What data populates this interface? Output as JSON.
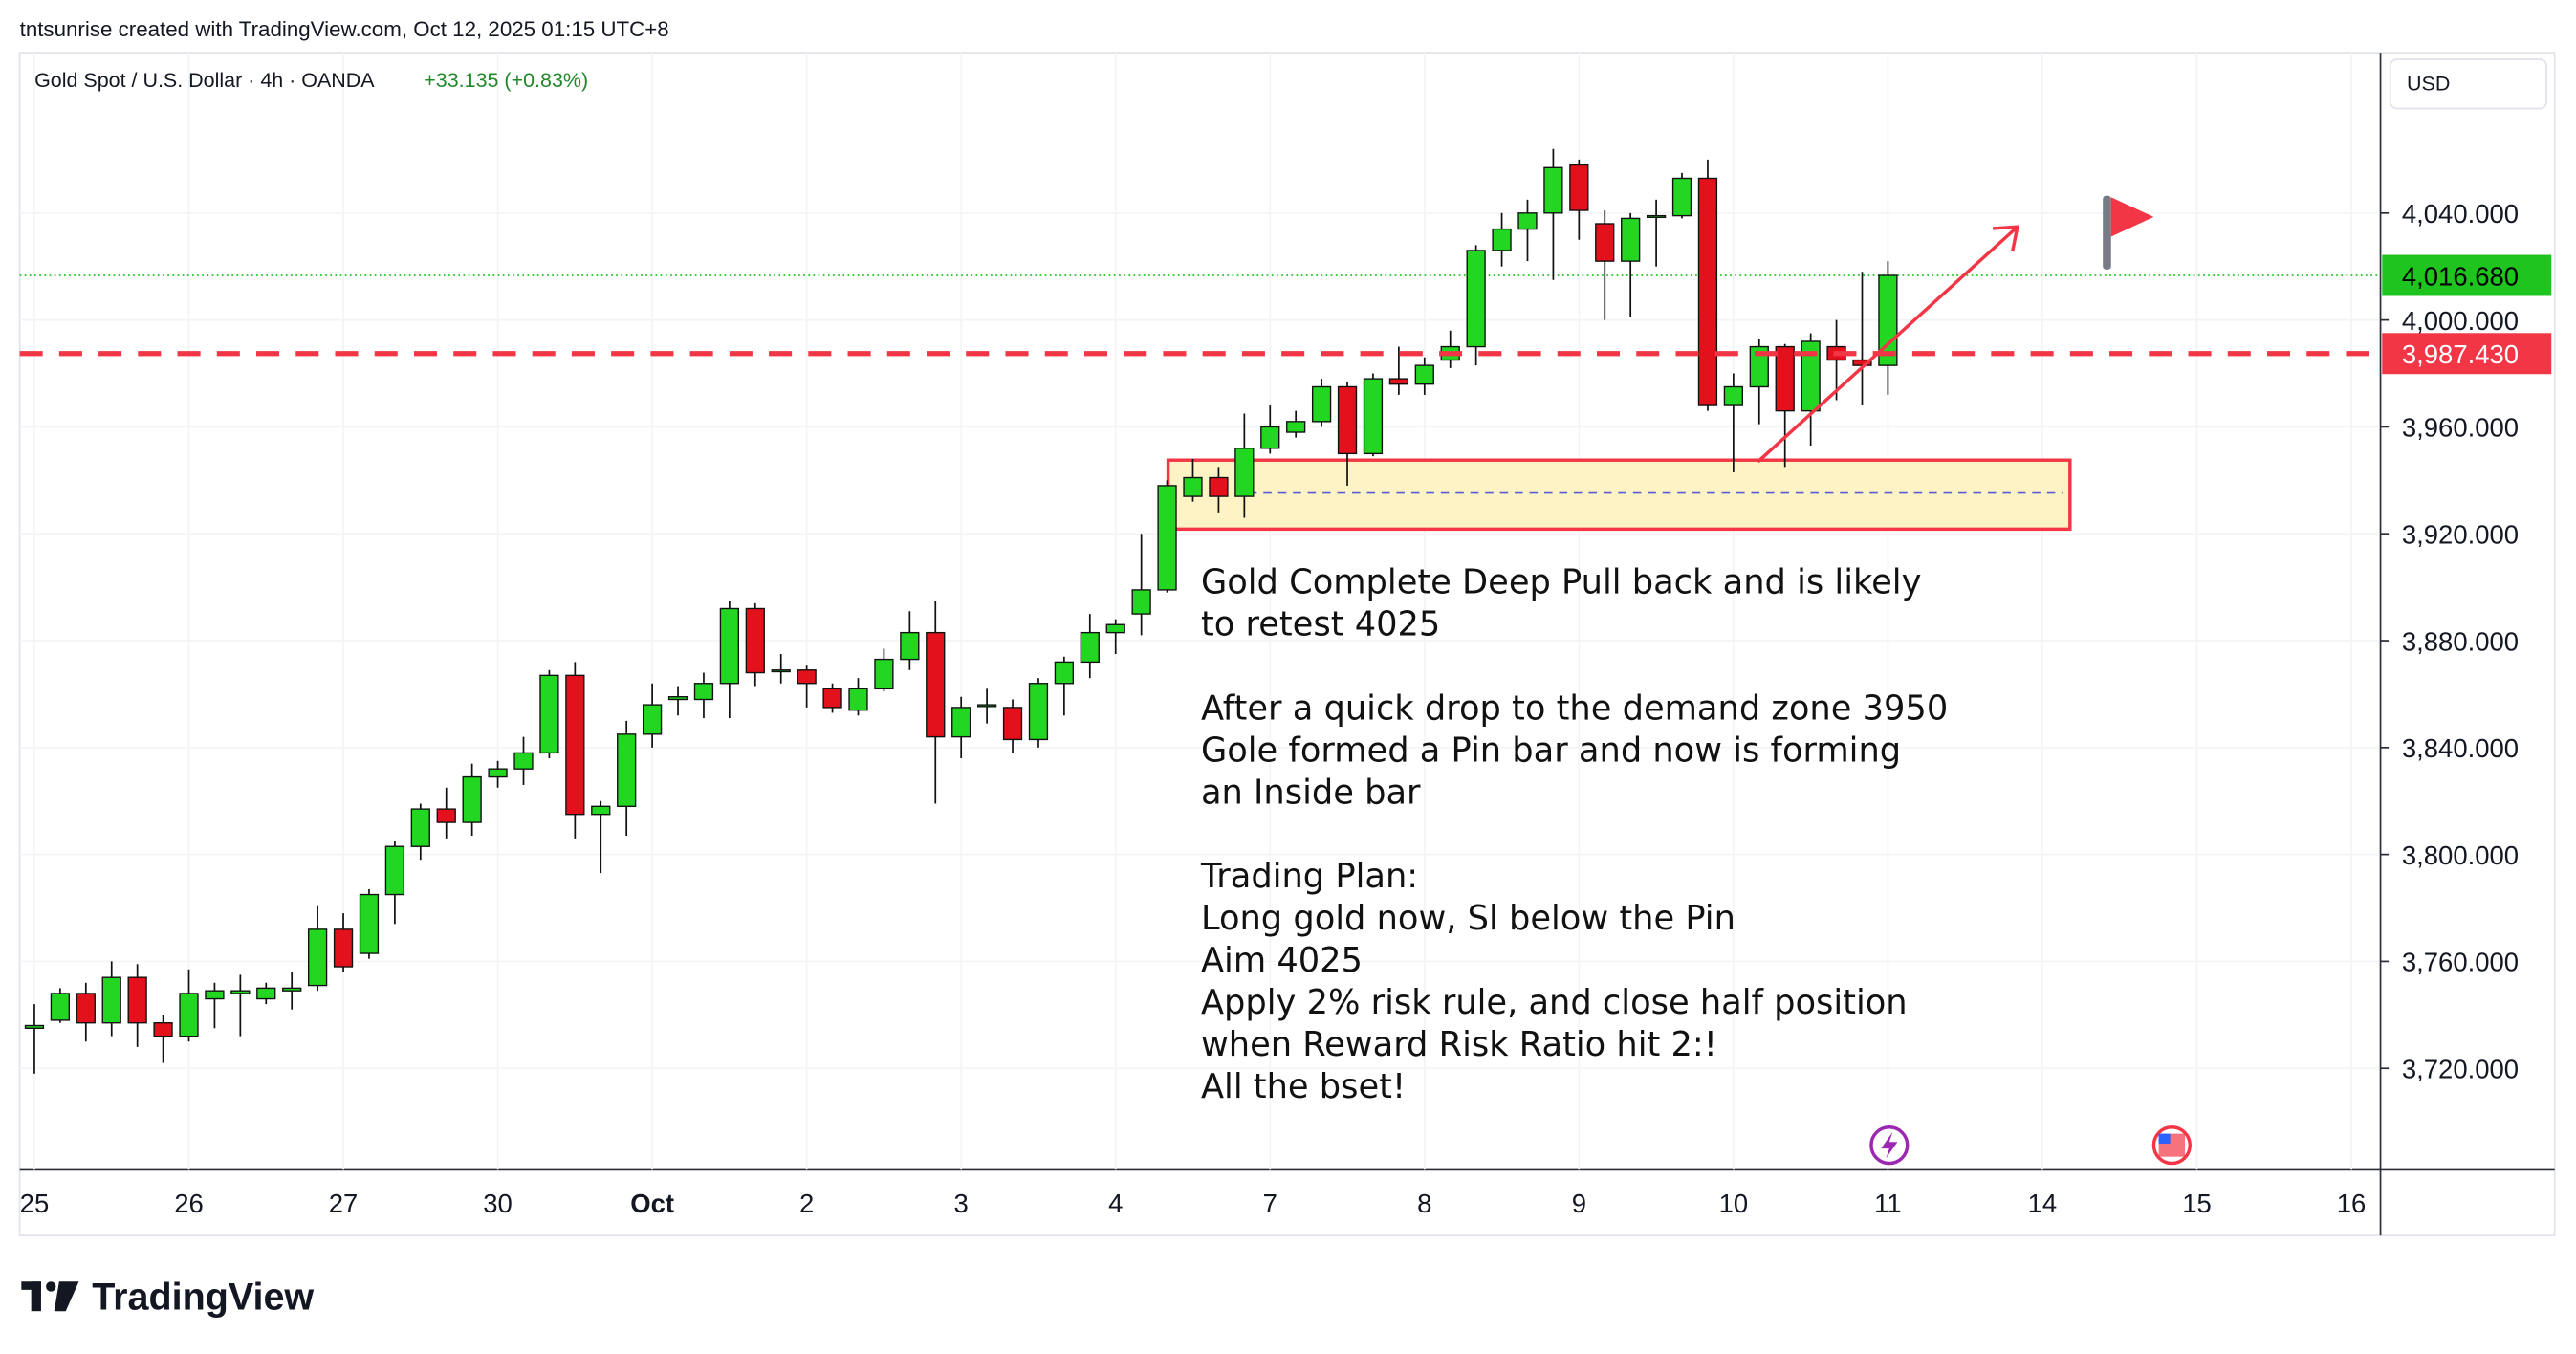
{
  "header": {
    "credit": "tntsunrise created with TradingView.com, Oct 12, 2025 01:15 UTC+8",
    "brand": "TradingView"
  },
  "chart_data": {
    "type": "candlestick",
    "symbol": "Gold Spot / U.S. Dollar · 4h · OANDA",
    "change": "+33.135 (+0.83%)",
    "currency": "USD",
    "up_color": "#22d622",
    "down_color": "#e3111b",
    "wick_color": "#111111",
    "open": [
      3735,
      3738,
      3748,
      3737,
      3754,
      3737,
      3732,
      3746,
      3748,
      3746,
      3749,
      3751,
      3772,
      3763,
      3785,
      3803,
      3817,
      3812,
      3829,
      3832,
      3838,
      3867,
      3815,
      3818,
      3845,
      3858,
      3858,
      3864,
      3892,
      3869,
      3869,
      3862,
      3854,
      3862,
      3873,
      3883,
      3844,
      3856,
      3855,
      3843,
      3864,
      3872,
      3883,
      3890,
      3899,
      3934,
      3941,
      3934,
      3952,
      3958,
      3962,
      3975,
      3950,
      3978,
      3976,
      3985,
      3990,
      4026,
      4034,
      4040,
      4058,
      4036,
      4022,
      4039,
      4039,
      4053,
      3968,
      3975,
      3990,
      3966,
      3990,
      3985,
      3983
    ],
    "high": [
      3744,
      3750,
      3752,
      3760,
      3759,
      3740,
      3757,
      3752,
      3755,
      3752,
      3756,
      3781,
      3778,
      3787,
      3805,
      3819,
      3825,
      3834,
      3835,
      3844,
      3869,
      3872,
      3820,
      3850,
      3864,
      3863,
      3868,
      3895,
      3894,
      3875,
      3871,
      3864,
      3866,
      3877,
      3891,
      3895,
      3859,
      3862,
      3858,
      3866,
      3874,
      3890,
      3888,
      3920,
      3940,
      3948,
      3945,
      3965,
      3968,
      3966,
      3978,
      3977,
      3980,
      3990,
      3986,
      3996,
      4028,
      4040,
      4045,
      4064,
      4060,
      4041,
      4040,
      4045,
      4055,
      4060,
      3980,
      3993,
      3991,
      3995,
      4000,
      4018,
      4022
    ],
    "low": [
      3718,
      3737,
      3730,
      3732,
      3728,
      3722,
      3730,
      3735,
      3732,
      3744,
      3742,
      3749,
      3756,
      3761,
      3774,
      3798,
      3806,
      3807,
      3825,
      3826,
      3836,
      3806,
      3793,
      3807,
      3840,
      3852,
      3851,
      3851,
      3863,
      3864,
      3855,
      3853,
      3852,
      3861,
      3869,
      3819,
      3836,
      3849,
      3838,
      3840,
      3852,
      3866,
      3875,
      3882,
      3898,
      3932,
      3928,
      3926,
      3950,
      3956,
      3960,
      3938,
      3949,
      3972,
      3972,
      3982,
      3983,
      4020,
      4022,
      4015,
      4030,
      4000,
      4001,
      4020,
      4038,
      3966,
      3943,
      3961,
      3945,
      3953,
      3970,
      3968,
      3972
    ],
    "close": [
      3736,
      3748,
      3737,
      3754,
      3737,
      3732,
      3748,
      3749,
      3749,
      3750,
      3750,
      3772,
      3758,
      3785,
      3803,
      3817,
      3812,
      3829,
      3832,
      3838,
      3867,
      3815,
      3818,
      3845,
      3856,
      3859,
      3864,
      3892,
      3868,
      3869,
      3864,
      3855,
      3862,
      3873,
      3883,
      3844,
      3855,
      3856,
      3843,
      3864,
      3872,
      3883,
      3886,
      3899,
      3938,
      3941,
      3934,
      3952,
      3960,
      3962,
      3975,
      3950,
      3978,
      3976,
      3983,
      3990,
      4026,
      4034,
      4040,
      4057,
      4041,
      4022,
      4038,
      4039,
      4053,
      3968,
      3975,
      3990,
      3966,
      3992,
      3985,
      3983,
      4016.68
    ],
    "xlim": [
      -0.57,
      91.07
    ],
    "xticks": [
      {
        "value": 0,
        "label": "25"
      },
      {
        "value": 6,
        "label": "26"
      },
      {
        "value": 12,
        "label": "27"
      },
      {
        "value": 18,
        "label": "30"
      },
      {
        "value": 24,
        "label": "Oct"
      },
      {
        "value": 30,
        "label": "2"
      },
      {
        "value": 36,
        "label": "3"
      },
      {
        "value": 42,
        "label": "4"
      },
      {
        "value": 48,
        "label": "7"
      },
      {
        "value": 54,
        "label": "8"
      },
      {
        "value": 60,
        "label": "9"
      },
      {
        "value": 66,
        "label": "10"
      },
      {
        "value": 72,
        "label": "11"
      },
      {
        "value": 78,
        "label": "14"
      },
      {
        "value": 84,
        "label": "15"
      },
      {
        "value": 90,
        "label": "16"
      }
    ],
    "ylim": [
      3682,
      4100
    ],
    "yticks": [
      {
        "value": 3720,
        "label": "3,720.000"
      },
      {
        "value": 3760,
        "label": "3,760.000"
      },
      {
        "value": 3800,
        "label": "3,800.000"
      },
      {
        "value": 3840,
        "label": "3,840.000"
      },
      {
        "value": 3880,
        "label": "3,880.000"
      },
      {
        "value": 3920,
        "label": "3,920.000"
      },
      {
        "value": 3960,
        "label": "3,960.000"
      },
      {
        "value": 4000,
        "label": "4,000.000"
      },
      {
        "value": 4040,
        "label": "4,040.000"
      }
    ],
    "last_price": {
      "value": 4016.68,
      "label": "4,016.680",
      "color": "#1fc41f"
    },
    "level": {
      "value": 3987.43,
      "label": "3,987.430",
      "color": "#f23645"
    },
    "annotation": [
      [
        "Gold Complete Deep Pull back and is likely",
        "to retest 4025"
      ],
      [
        "After a quick drop to the demand zone 3950",
        "Gole formed a Pin bar and now is forming",
        "an Inside bar"
      ],
      [
        "Trading Plan:",
        "Long gold now, Sl below the Pin",
        "Aim 4025",
        "Apply 2% risk rule,  and close half position",
        "when Reward Risk Ratio hit 2:!",
        "All the bset!"
      ]
    ]
  }
}
